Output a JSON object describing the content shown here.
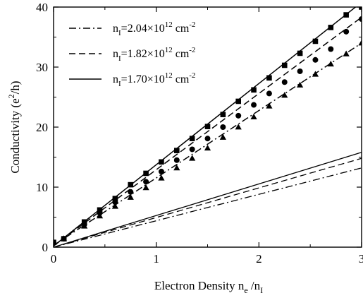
{
  "chart_data": {
    "type": "scatter",
    "xlabel": "Electron Density n",
    "xlabel_parts": {
      "main": "Electron Density n",
      "sub1": "e",
      "mid": " /n",
      "sub2": "I"
    },
    "ylabel": "Conductivity (e²/h)",
    "ylabel_parts": {
      "main": "Conductivity (e",
      "sup": "2",
      "tail": "/h)"
    },
    "xlim": [
      0,
      3
    ],
    "ylim": [
      0,
      40
    ],
    "x_ticks": [
      0,
      1,
      2,
      3
    ],
    "y_ticks": [
      0,
      10,
      20,
      30,
      40
    ],
    "grid": false,
    "legend_position": "top-left",
    "series": [
      {
        "name": "n_I=2.04×10^12 cm^-2",
        "label_parts": {
          "a": "n",
          "b": "I",
          "c": "=2.04×10",
          "d": "12",
          "e": " cm",
          "f": "-2"
        },
        "linestyle": "dashdot",
        "marker": "triangle",
        "points_x": [
          0,
          0.1,
          0.3,
          0.45,
          0.6,
          0.75,
          0.9,
          1.05,
          1.2,
          1.35,
          1.5,
          1.65,
          1.8,
          1.95,
          2.1,
          2.25,
          2.4,
          2.55,
          2.7,
          2.85,
          3.0
        ],
        "points_y": [
          0.8,
          1.4,
          3.5,
          5.2,
          6.8,
          8.3,
          9.9,
          11.5,
          13.2,
          14.8,
          16.5,
          18.3,
          20.0,
          21.7,
          23.5,
          25.3,
          27.0,
          28.8,
          30.5,
          32.2,
          34.0
        ],
        "fit_x": [
          0,
          3
        ],
        "fit_y": [
          0.3,
          34.0
        ],
        "low_line_x": [
          0,
          3
        ],
        "low_line_y": [
          0,
          13.2
        ]
      },
      {
        "name": "n_I=1.82×10^12 cm^-2",
        "label_parts": {
          "a": "n",
          "b": "I",
          "c": "=1.82×10",
          "d": "12",
          "e": " cm",
          "f": "-2"
        },
        "linestyle": "dashed",
        "marker": "circle",
        "points_x": [
          0,
          0.1,
          0.3,
          0.45,
          0.6,
          0.75,
          0.9,
          1.05,
          1.2,
          1.35,
          1.5,
          1.65,
          1.8,
          1.95,
          2.1,
          2.25,
          2.4,
          2.55,
          2.7,
          2.85,
          3.0
        ],
        "points_y": [
          0.8,
          1.4,
          3.8,
          5.7,
          7.5,
          9.2,
          10.9,
          12.6,
          14.5,
          16.3,
          18.1,
          20.0,
          21.9,
          23.7,
          25.6,
          27.5,
          29.3,
          31.2,
          33.0,
          35.9,
          38.0
        ],
        "fit_x": [
          0,
          3
        ],
        "fit_y": [
          0.2,
          38.3
        ],
        "low_line_x": [
          0,
          3
        ],
        "low_line_y": [
          0,
          14.8
        ]
      },
      {
        "name": "n_I=1.70×10^12 cm^-2",
        "label_parts": {
          "a": "n",
          "b": "I",
          "c": "=1.70×10",
          "d": "12",
          "e": " cm",
          "f": "-2"
        },
        "linestyle": "solid",
        "marker": "square",
        "points_x": [
          0,
          0.1,
          0.3,
          0.45,
          0.6,
          0.75,
          0.9,
          1.05,
          1.2,
          1.35,
          1.5,
          1.65,
          1.8,
          1.95,
          2.1,
          2.25,
          2.4,
          2.55,
          2.7,
          2.85,
          3.0
        ],
        "points_y": [
          0.8,
          1.4,
          4.2,
          6.2,
          8.1,
          10.4,
          12.3,
          14.2,
          16.1,
          18.1,
          20.1,
          22.1,
          24.3,
          26.2,
          28.2,
          30.3,
          32.3,
          34.3,
          36.6,
          38.7,
          40.0
        ],
        "fit_x": [
          0,
          3
        ],
        "fit_y": [
          0.2,
          40.8
        ],
        "low_line_x": [
          0,
          3
        ],
        "low_line_y": [
          0,
          15.8
        ]
      }
    ]
  }
}
